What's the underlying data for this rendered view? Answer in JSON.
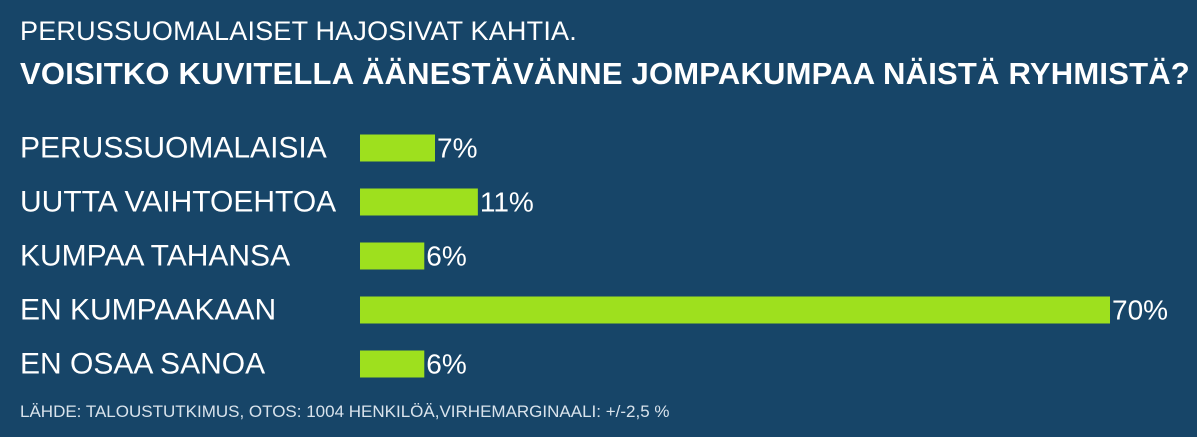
{
  "header": {
    "subtitle": "PERUSSUOMALAISET HAJOSIVAT KAHTIA.",
    "title": "VOISITKO KUVITELLA ÄÄNESTÄVÄNNE JOMPAKUMPAA NÄISTÄ RYHMISTÄ?"
  },
  "chart_data": {
    "type": "bar",
    "orientation": "horizontal",
    "categories": [
      "PERUSSUOMALAISIA",
      "UUTTA VAIHTOEHTOA",
      "KUMPAA TAHANSA",
      "EN KUMPAAKAAN",
      "EN OSAA SANOA"
    ],
    "values": [
      7,
      11,
      6,
      70,
      6
    ],
    "value_labels": [
      "7%",
      "11%",
      "6%",
      "70%",
      "6%"
    ],
    "unit": "%",
    "xlim": [
      0,
      70
    ],
    "grid": false,
    "bar_color": "#9ee01e",
    "background_color": "#174568"
  },
  "footer": {
    "source": "LÄHDE: TALOUSTUTKIMUS, OTOS: 1004 HENKILÖÄ,VIRHEMARGINAALI: +/-2,5 %"
  }
}
